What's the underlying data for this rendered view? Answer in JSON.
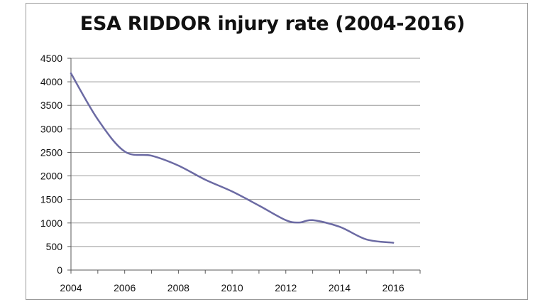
{
  "chart_data": {
    "type": "line",
    "title": "ESA RIDDOR injury rate (2004-2016)",
    "xlabel": "",
    "ylabel": "",
    "x": [
      2004,
      2005,
      2006,
      2007,
      2008,
      2009,
      2010,
      2011,
      2012,
      2012.5,
      2013,
      2014,
      2015,
      2016
    ],
    "series": [
      {
        "name": "",
        "values": [
          4180,
          3200,
          2520,
          2430,
          2220,
          1920,
          1670,
          1370,
          1060,
          1010,
          1060,
          920,
          650,
          580
        ]
      }
    ],
    "xlim": [
      2004,
      2017
    ],
    "ylim": [
      0,
      4500
    ],
    "xticks": [
      "2004",
      "2006",
      "2008",
      "2010",
      "2012",
      "2014",
      "2016"
    ],
    "yticks": [
      "0",
      "500",
      "1000",
      "1500",
      "2000",
      "2500",
      "3000",
      "3500",
      "4000",
      "4500"
    ],
    "grid": true,
    "colors": {
      "line": "#6b6aa3",
      "grid": "#9a9a9a",
      "axis": "#5a5a5a"
    }
  }
}
